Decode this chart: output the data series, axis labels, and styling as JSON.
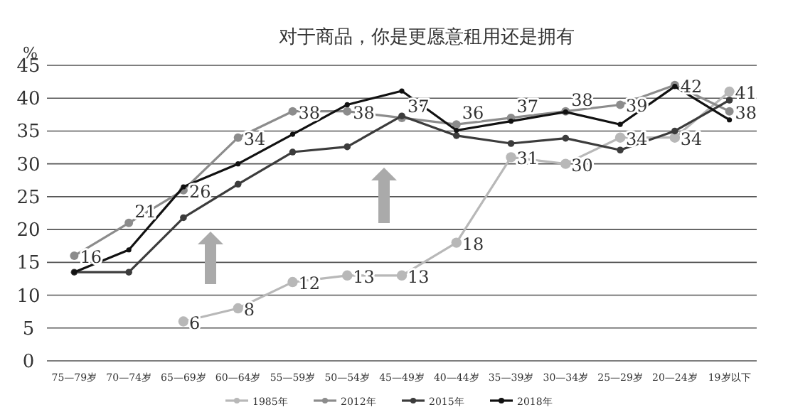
{
  "chart_data": {
    "type": "line",
    "title": "对于商品，你是更愿意租用还是拥有",
    "ylabel": "%",
    "categories": [
      "75—79岁",
      "70—74岁",
      "65—69岁",
      "60—64岁",
      "55—59岁",
      "50—54岁",
      "45—49岁",
      "40—44岁",
      "35—39岁",
      "30—34岁",
      "25—29岁",
      "20—24岁",
      "19岁以下"
    ],
    "series": [
      {
        "name": "1985年",
        "color": "#b8b8b8",
        "values": [
          null,
          null,
          6,
          8,
          12,
          13,
          13,
          18,
          31,
          30,
          34,
          34,
          41
        ],
        "value_labels": [
          null,
          null,
          "6",
          "8",
          "12",
          "13",
          "13",
          "18",
          "31",
          "30",
          "34",
          "34",
          "41"
        ]
      },
      {
        "name": "2012年",
        "color": "#8c8c8c",
        "values": [
          16,
          21,
          26,
          34,
          38,
          38,
          37,
          36,
          37,
          38,
          39,
          42,
          38
        ],
        "value_labels": [
          "16",
          "21",
          "26",
          "34",
          "38",
          "38",
          "37",
          "36",
          "37",
          "38",
          "39",
          "42",
          "38"
        ]
      },
      {
        "name": "2015年",
        "color": "#3c3c3c",
        "values": [
          13.5,
          13.5,
          21.8,
          26.9,
          31.8,
          32.6,
          37.3,
          34.3,
          33.1,
          33.9,
          32.1,
          35,
          39.7
        ]
      },
      {
        "name": "2018年",
        "color": "#111111",
        "values": [
          13.5,
          16.9,
          26.5,
          30,
          34.5,
          39,
          41.1,
          35.1,
          36.5,
          37.9,
          36,
          41.8,
          36.7
        ]
      }
    ],
    "ylim": [
      0,
      45
    ],
    "yticks": [
      0,
      5,
      10,
      15,
      20,
      25,
      30,
      35,
      40,
      45
    ],
    "grid": "y",
    "legend": "bottom",
    "marker": "circle",
    "line_style": "solid"
  }
}
